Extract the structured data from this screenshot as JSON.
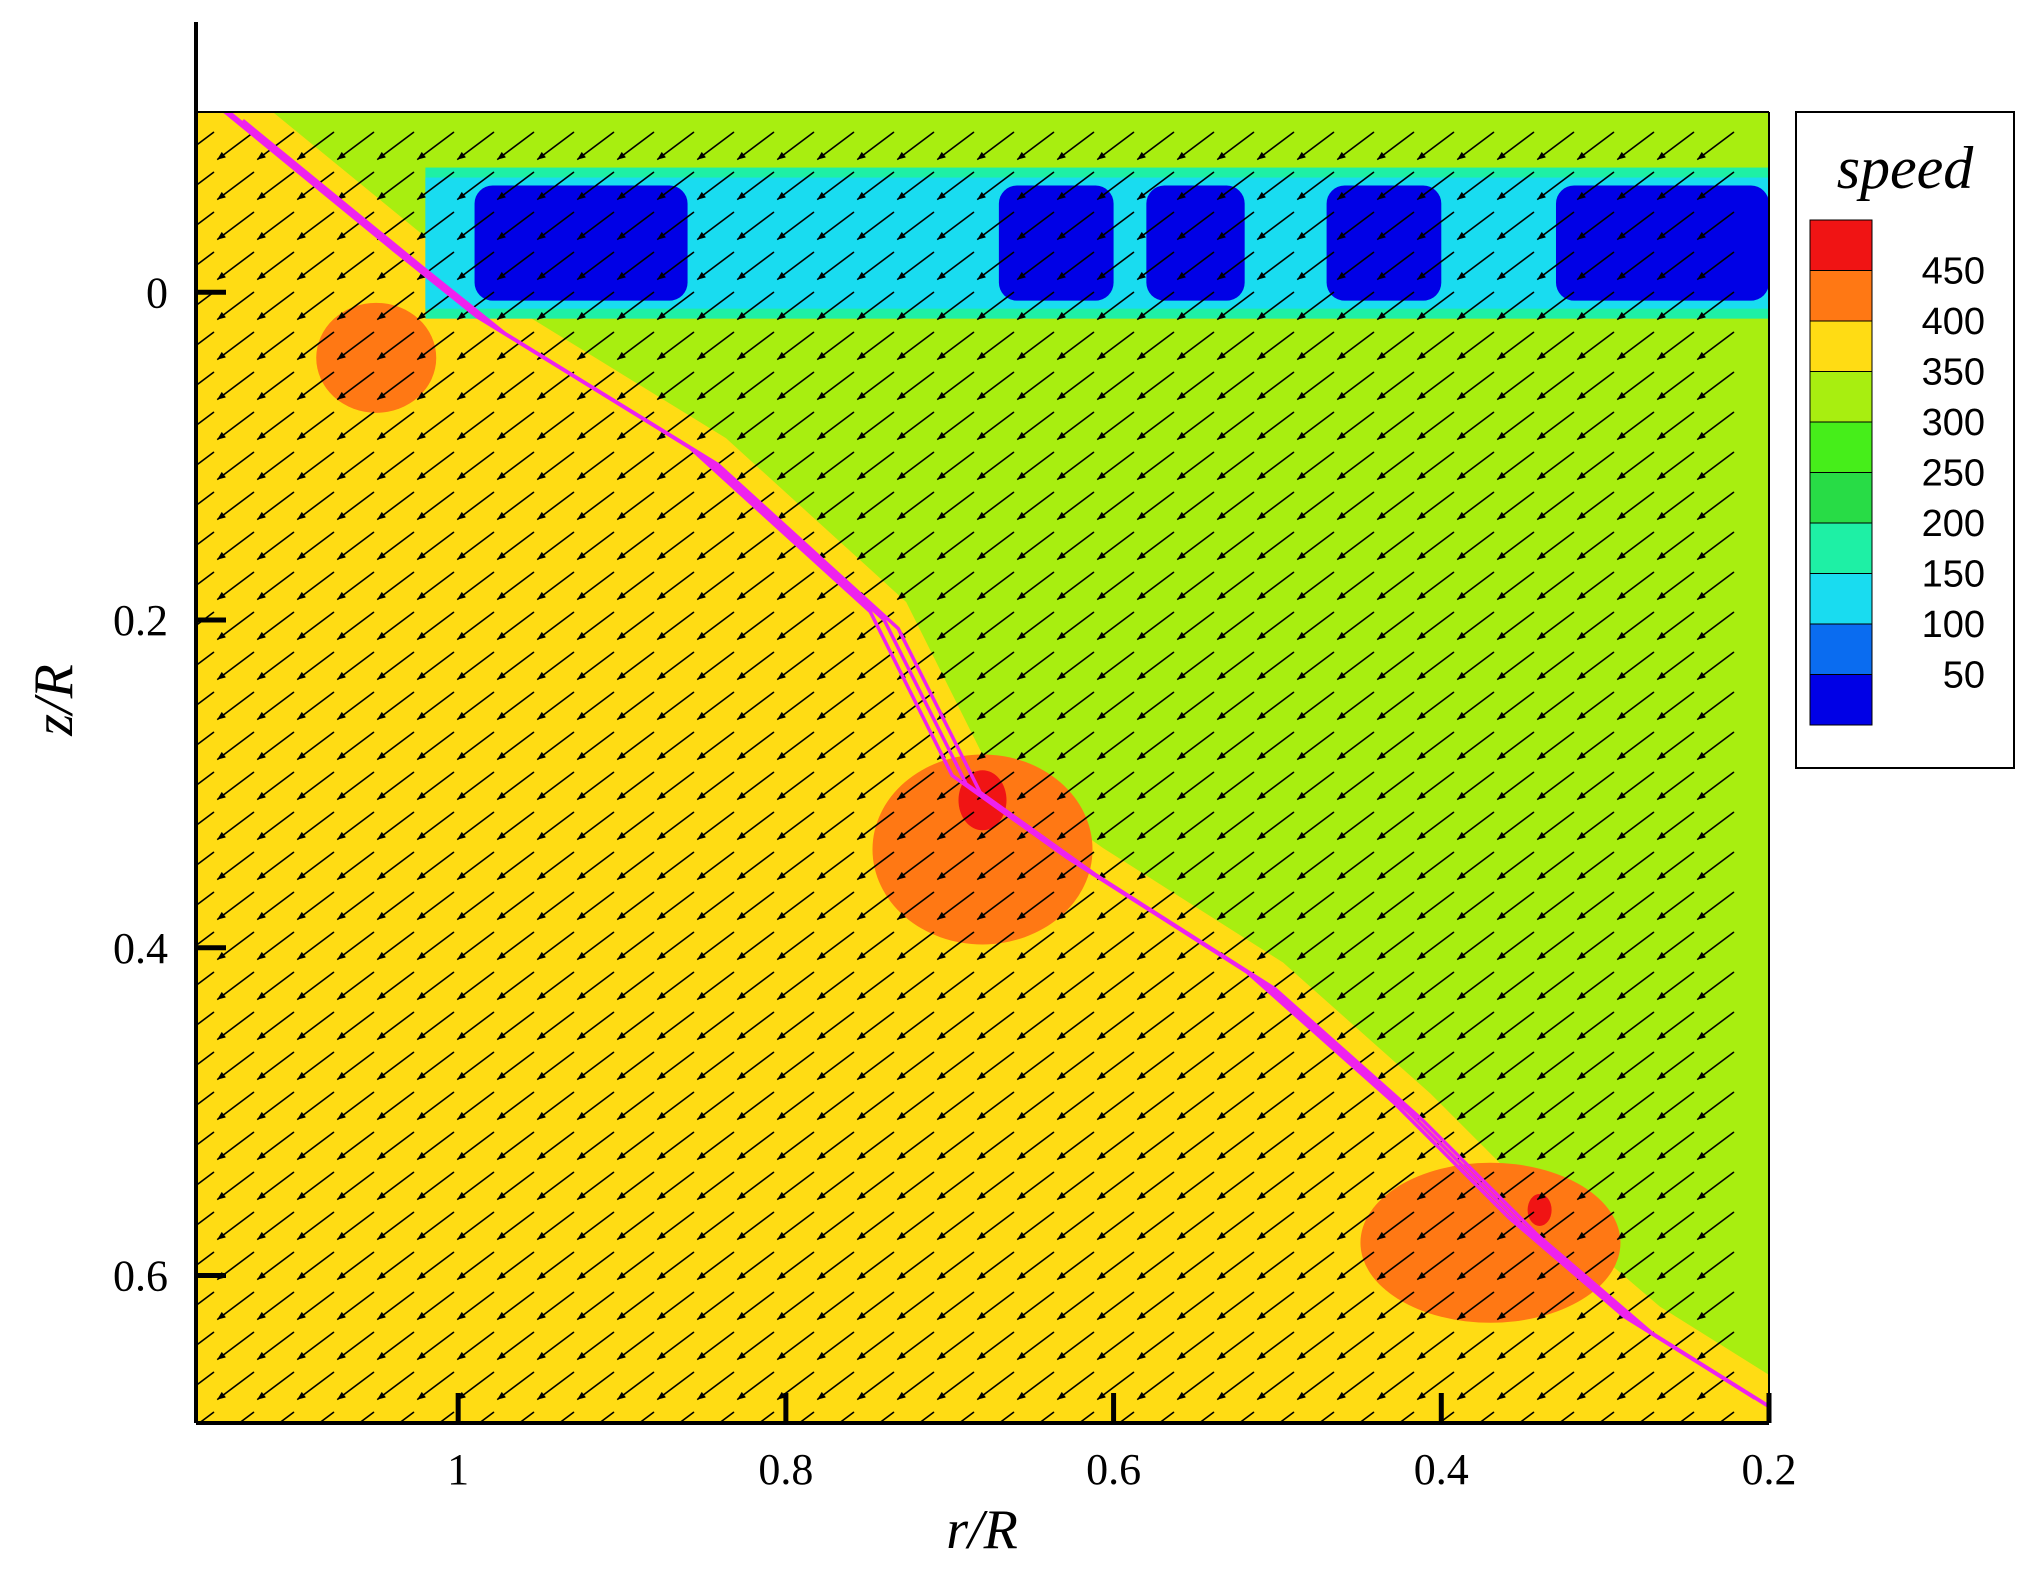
{
  "chart_data": {
    "type": "heatmap",
    "subtype": "contour-vector-field",
    "xlabel": "r/R",
    "ylabel": "z/R",
    "x_ticks": [
      "1",
      "0.8",
      "0.6",
      "0.4",
      "0.2"
    ],
    "y_ticks": [
      "0",
      "0.2",
      "0.4",
      "0.6"
    ],
    "xlim": [
      1.16,
      0.2
    ],
    "ylim": [
      -0.11,
      0.69
    ],
    "legend": {
      "title": "speed",
      "position": "right",
      "levels": [
        50,
        100,
        150,
        200,
        250,
        300,
        350,
        400,
        450
      ],
      "level_labels": [
        "450",
        "400",
        "350",
        "300",
        "250",
        "200",
        "150",
        "100",
        "50"
      ],
      "colors": [
        "#0000e6",
        "#0a6cf0",
        "#19dcf0",
        "#1ef0a5",
        "#28dc46",
        "#46ee1a",
        "#a8ee10",
        "#ffdc14",
        "#ff7814",
        "#f01414"
      ]
    },
    "regions": [
      {
        "level": 300,
        "desc": "upper-right region above diagonal jet"
      },
      {
        "level": 350,
        "desc": "lower-left region below diagonal jet"
      },
      {
        "level": 50,
        "desc": "low-speed band near z/R 0"
      },
      {
        "level": 400,
        "desc": "high-speed patches along diagonal jet"
      }
    ],
    "vector_direction": {
      "dr": -0.6,
      "dz": 0.45
    },
    "streamlines": {
      "color": "#ee22ee",
      "count": 3,
      "path": [
        [
          1.14,
          -0.11
        ],
        [
          1.03,
          -0.02
        ],
        [
          0.98,
          0.02
        ],
        [
          0.85,
          0.1
        ],
        [
          0.74,
          0.2
        ],
        [
          0.69,
          0.3
        ],
        [
          0.62,
          0.35
        ],
        [
          0.51,
          0.42
        ],
        [
          0.42,
          0.5
        ],
        [
          0.35,
          0.57
        ],
        [
          0.28,
          0.63
        ],
        [
          0.2,
          0.68
        ]
      ]
    }
  }
}
